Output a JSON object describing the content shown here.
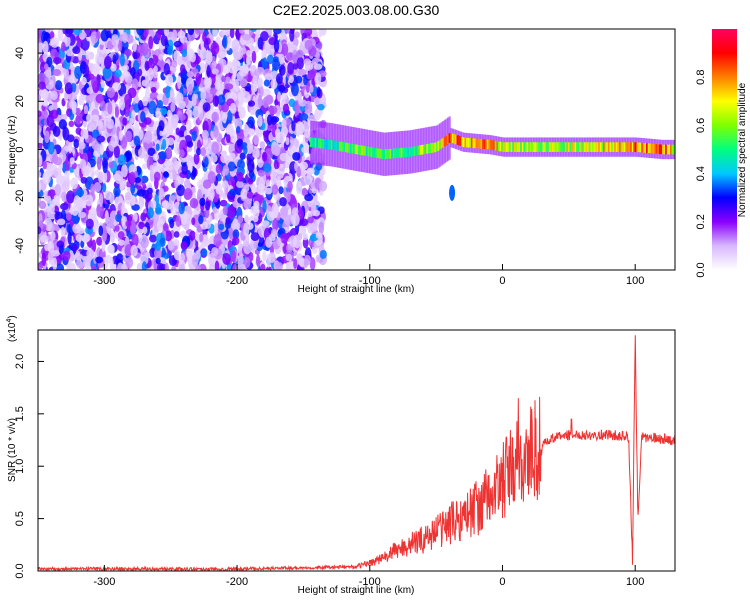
{
  "title": "C2E2.2025.003.08.00.G30",
  "chart_data": [
    {
      "type": "heatmap",
      "xlabel": "Height of straight line (km)",
      "ylabel": "Frequency (Hz)",
      "xlim": [
        -350,
        130
      ],
      "ylim": [
        -50,
        50
      ],
      "x_ticks": [
        -300,
        -200,
        -100,
        0,
        100
      ],
      "y_ticks": [
        -40,
        -20,
        0,
        20,
        40
      ],
      "colorbar": {
        "label": "Normalized spectral amplitude",
        "range": [
          0.0,
          1.0
        ],
        "ticks": [
          0.0,
          0.2,
          0.4,
          0.6,
          0.8
        ],
        "colors": [
          "#ffffff",
          "#d8b8ff",
          "#8a00ff",
          "#0000ff",
          "#00c8ff",
          "#00ff80",
          "#7fff00",
          "#ffff00",
          "#ff8000",
          "#ff0000",
          "#ff0060"
        ]
      },
      "ridge": {
        "x": [
          -145,
          -130,
          -110,
          -90,
          -70,
          -50,
          -40,
          -30,
          -10,
          0,
          20,
          40,
          60,
          80,
          100,
          120,
          130
        ],
        "y": [
          3,
          2,
          0,
          -2,
          -1,
          1,
          5,
          3,
          2,
          1,
          1,
          1,
          1,
          1,
          1,
          0,
          0
        ],
        "amplitude": [
          0.5,
          0.5,
          0.6,
          0.55,
          0.6,
          0.65,
          0.9,
          0.85,
          0.8,
          0.7,
          0.65,
          0.7,
          0.7,
          0.75,
          0.85,
          0.9,
          0.7
        ]
      },
      "isolated_blob": {
        "x": -38,
        "y": -18,
        "amplitude": 0.35
      }
    },
    {
      "type": "line",
      "xlabel": "Height of straight line (km)",
      "ylabel": "SNR (10 * v/v)",
      "y_scale_label": "(x10",
      "y_scale_exponent": "4",
      "xlim": [
        -350,
        130
      ],
      "ylim": [
        0,
        2.3
      ],
      "x_ticks": [
        -300,
        -200,
        -100,
        0,
        100
      ],
      "y_ticks": [
        0.0,
        0.5,
        1.0,
        1.5,
        2.0
      ],
      "color": "#ee3333",
      "series": [
        {
          "x": [
            -350,
            -200,
            -110,
            -100,
            -90,
            -80,
            -70,
            -60,
            -50,
            -40,
            -30,
            -20,
            -10,
            0,
            10,
            20,
            30,
            40,
            50,
            60,
            80,
            95,
            98,
            100,
            102,
            105,
            130
          ],
          "values": [
            0.02,
            0.02,
            0.04,
            0.08,
            0.12,
            0.2,
            0.25,
            0.3,
            0.38,
            0.45,
            0.52,
            0.6,
            0.7,
            0.85,
            1.0,
            1.1,
            1.2,
            1.28,
            1.3,
            1.3,
            1.3,
            1.28,
            0.1,
            2.25,
            0.5,
            1.28,
            1.25
          ]
        }
      ],
      "spikes": [
        {
          "x": 12,
          "y": 1.65
        },
        {
          "x": 52,
          "y": 1.45
        },
        {
          "x": 100,
          "y": 2.25
        }
      ]
    }
  ]
}
